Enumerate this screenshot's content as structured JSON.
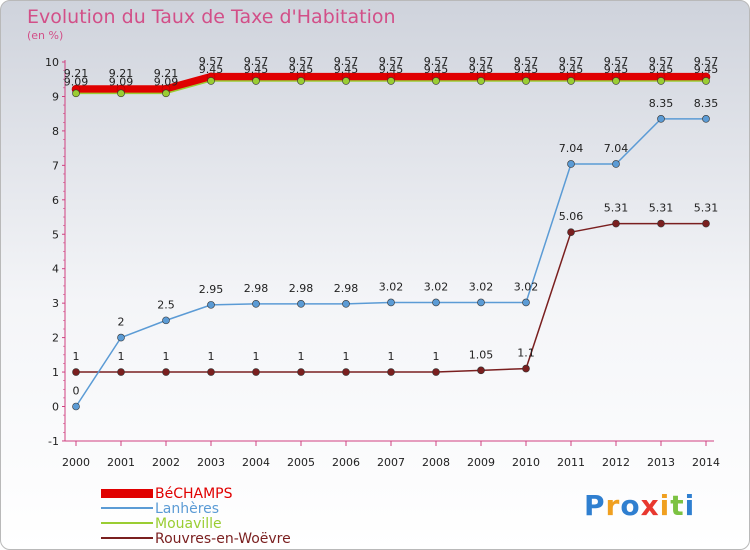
{
  "chart_data": {
    "type": "line",
    "title": "Evolution du Taux de Taxe d'Habitation",
    "unit_label": "(en %)",
    "x": [
      2000,
      2001,
      2002,
      2003,
      2004,
      2005,
      2006,
      2007,
      2008,
      2009,
      2010,
      2011,
      2012,
      2013,
      2014
    ],
    "ylim": [
      -1,
      10
    ],
    "yticks": [
      -1,
      0,
      1,
      2,
      3,
      4,
      5,
      6,
      7,
      8,
      9,
      10
    ],
    "grid": false,
    "legend_position": "bottom-left",
    "series": [
      {
        "name": "BéCHAMPS",
        "color": "#e00000",
        "values": [
          9.21,
          9.21,
          9.21,
          9.57,
          9.57,
          9.57,
          9.57,
          9.57,
          9.57,
          9.57,
          9.57,
          9.57,
          9.57,
          9.57,
          9.57
        ],
        "labels": [
          "9.21",
          "9.21",
          "9.21",
          "9.57",
          "9.57",
          "9.57",
          "9.57",
          "9.57",
          "9.57",
          "9.57",
          "9.57",
          "9.57",
          "9.57",
          "9.57",
          "9.57"
        ]
      },
      {
        "name": "Lanhères",
        "color": "#5b9bd5",
        "values": [
          0,
          2,
          2.5,
          2.95,
          2.98,
          2.98,
          2.98,
          3.02,
          3.02,
          3.02,
          3.02,
          7.04,
          7.04,
          8.35,
          8.35
        ],
        "labels": [
          "0",
          "2",
          "2.5",
          "2.95",
          "2.98",
          "2.98",
          "2.98",
          "3.02",
          "3.02",
          "3.02",
          "3.02",
          "7.04",
          "7.04",
          "8.35",
          "8.35"
        ]
      },
      {
        "name": "Mouaville",
        "color": "#9acd32",
        "values": [
          9.09,
          9.09,
          9.09,
          9.45,
          9.45,
          9.45,
          9.45,
          9.45,
          9.45,
          9.45,
          9.45,
          9.45,
          9.45,
          9.45,
          9.45
        ],
        "labels": [
          "9.09",
          "9.09",
          "9.09",
          "9.45",
          "9.45",
          "9.45",
          "9.45",
          "9.45",
          "9.45",
          "9.45",
          "9.45",
          "9.45",
          "9.45",
          "9.45",
          "9.45"
        ]
      },
      {
        "name": "Rouvres-en-Woëvre",
        "color": "#7a1f1f",
        "values": [
          1,
          1,
          1,
          1,
          1,
          1,
          1,
          1,
          1,
          1.05,
          1.1,
          5.06,
          5.31,
          5.31,
          5.31
        ],
        "labels": [
          "1",
          "1",
          "1",
          "1",
          "1",
          "1",
          "1",
          "1",
          "1",
          "1.05",
          "1.1",
          "5.06",
          "5.31",
          "5.31",
          "5.31"
        ]
      }
    ]
  },
  "logo": {
    "letters": [
      "P",
      "r",
      "o",
      "x",
      "i",
      "t",
      "i"
    ],
    "colors": [
      "#2f7fd0",
      "#f0a020",
      "#2f7fd0",
      "#e8382f",
      "#f0a020",
      "#7cc242",
      "#2f7fd0"
    ]
  }
}
